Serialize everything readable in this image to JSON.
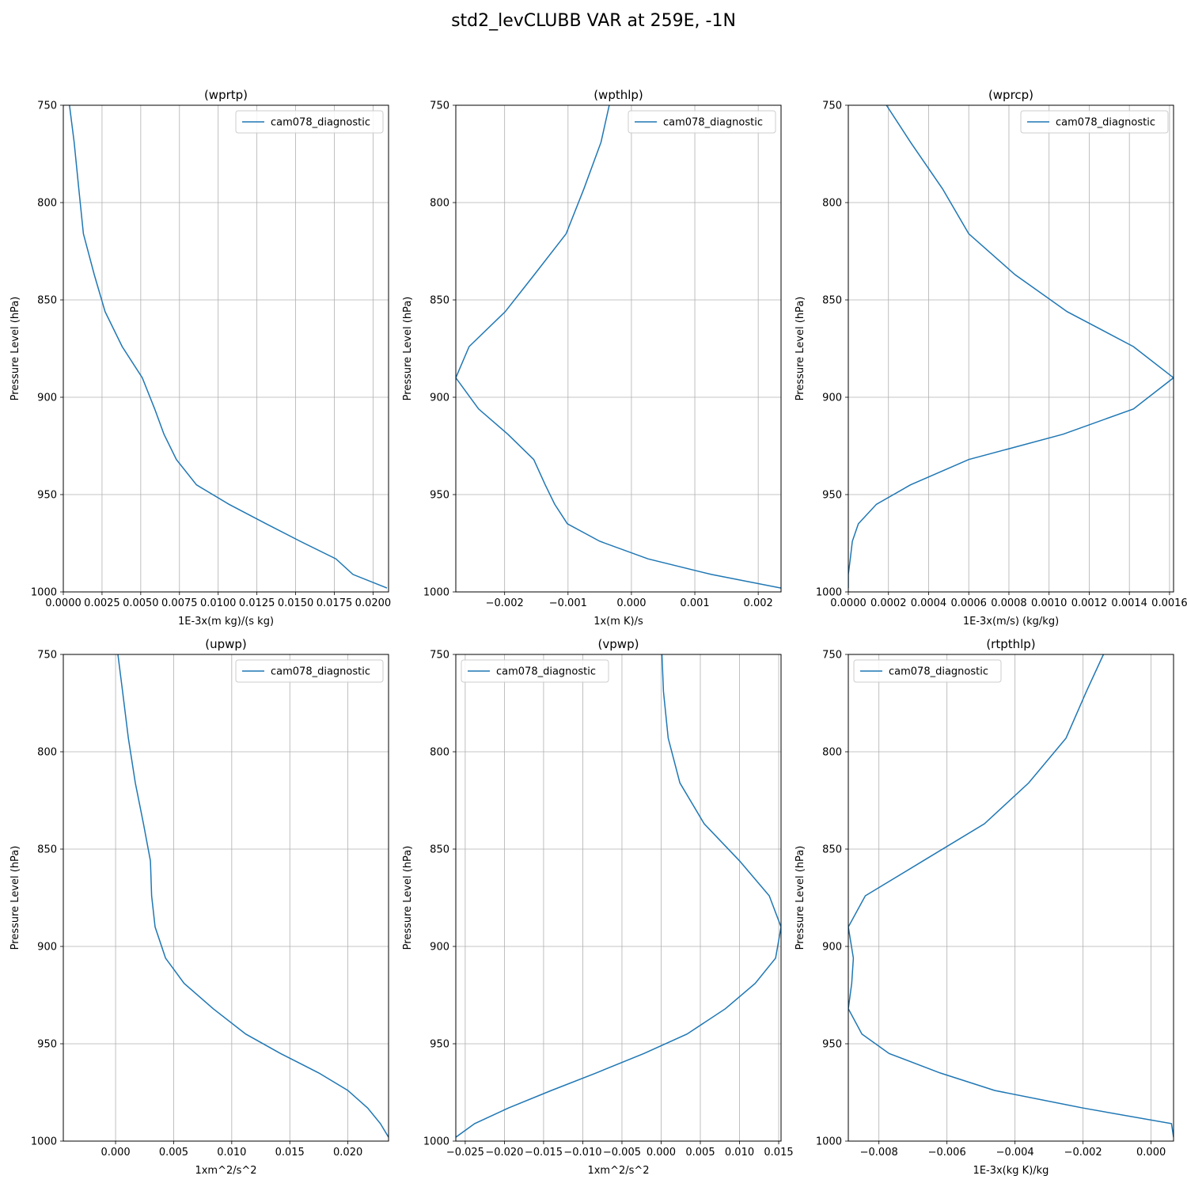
{
  "figure": {
    "title": "std2_levCLUBB VAR at 259E, -1N"
  },
  "colors": {
    "line": "#1f77b4",
    "grid": "#b0b0b0",
    "axes": "#000000",
    "legend_border": "#cccccc"
  },
  "chart_data": [
    {
      "type": "line",
      "title": "(wprtp)",
      "xlabel": "1E-3x(m kg)/(s kg)",
      "ylabel": "Pressure Level (hPa)",
      "xlim": [
        0,
        0.021
      ],
      "ylim": [
        1000,
        750
      ],
      "xticks": [
        0,
        0.0025,
        0.005,
        0.0075,
        0.01,
        0.0125,
        0.015,
        0.0175,
        0.02
      ],
      "xtick_labels": [
        "0.0000",
        "0.0025",
        "0.0050",
        "0.0075",
        "0.0100",
        "0.0125",
        "0.0150",
        "0.0175",
        "0.0200"
      ],
      "yticks": [
        750,
        800,
        850,
        900,
        950,
        1000
      ],
      "ytick_labels": [
        "750",
        "800",
        "850",
        "900",
        "950",
        "1000"
      ],
      "grid": true,
      "legend_loc": "upper right",
      "series": [
        {
          "name": "cam078_diagnostic",
          "x": [
            0.0004,
            0.0007,
            0.001,
            0.0013,
            0.002,
            0.0027,
            0.0038,
            0.0051,
            0.0059,
            0.0065,
            0.0073,
            0.0086,
            0.0107,
            0.0131,
            0.0153,
            0.0176,
            0.0187,
            0.0209
          ],
          "y": [
            750,
            769,
            793,
            816,
            837,
            856,
            874,
            890,
            906,
            919,
            932,
            945,
            955,
            965,
            974,
            983,
            991,
            998
          ]
        }
      ]
    },
    {
      "type": "line",
      "title": "(wpthlp)",
      "xlabel": "1x(m K)/s",
      "ylabel": "Pressure Level (hPa)",
      "xlim": [
        -0.00277,
        0.00236
      ],
      "ylim": [
        1000,
        750
      ],
      "xticks": [
        -0.002,
        -0.001,
        0,
        0.001,
        0.002
      ],
      "xtick_labels": [
        "−0.002",
        "−0.001",
        "0.000",
        "0.001",
        "0.002"
      ],
      "yticks": [
        750,
        800,
        850,
        900,
        950,
        1000
      ],
      "ytick_labels": [
        "750",
        "800",
        "850",
        "900",
        "950",
        "1000"
      ],
      "grid": true,
      "legend_loc": "upper right",
      "series": [
        {
          "name": "cam078_diagnostic",
          "x": [
            -0.00035,
            -0.00048,
            -0.00075,
            -0.00103,
            -0.00153,
            -0.00199,
            -0.00256,
            -0.00277,
            -0.00241,
            -0.00195,
            -0.00154,
            -0.00136,
            -0.00121,
            -0.00101,
            -0.0005,
            0.00026,
            0.00126,
            0.00236
          ],
          "y": [
            750,
            769,
            793,
            816,
            837,
            856,
            874,
            890,
            906,
            919,
            932,
            945,
            955,
            965,
            974,
            983,
            991,
            998
          ]
        }
      ]
    },
    {
      "type": "line",
      "title": "(wprcp)",
      "xlabel": "1E-3x(m/s) (kg/kg)",
      "ylabel": "Pressure Level (hPa)",
      "xlim": [
        0,
        0.00162
      ],
      "ylim": [
        1000,
        750
      ],
      "xticks": [
        0,
        0.0002,
        0.0004,
        0.0006,
        0.0008,
        0.001,
        0.0012,
        0.0014,
        0.0016
      ],
      "xtick_labels": [
        "0.0000",
        "0.0002",
        "0.0004",
        "0.0006",
        "0.0008",
        "0.0010",
        "0.0012",
        "0.0014",
        "0.0016"
      ],
      "yticks": [
        750,
        800,
        850,
        900,
        950,
        1000
      ],
      "ytick_labels": [
        "750",
        "800",
        "850",
        "900",
        "950",
        "1000"
      ],
      "grid": true,
      "legend_loc": "upper right",
      "series": [
        {
          "name": "cam078_diagnostic",
          "x": [
            0.00019,
            0.00031,
            0.00047,
            0.0006,
            0.00083,
            0.00109,
            0.00142,
            0.00162,
            0.00142,
            0.00107,
            0.0006,
            0.00031,
            0.00014,
            5e-05,
            2e-05,
            1e-05,
            0.0,
            0.0
          ],
          "y": [
            750,
            769,
            793,
            816,
            837,
            856,
            874,
            890,
            906,
            919,
            932,
            945,
            955,
            965,
            974,
            983,
            991,
            998
          ]
        }
      ]
    },
    {
      "type": "line",
      "title": "(upwp)",
      "xlabel": "1xm^2/s^2",
      "ylabel": "Pressure Level (hPa)",
      "xlim": [
        -0.0045,
        0.0235
      ],
      "ylim": [
        1000,
        750
      ],
      "xticks": [
        0,
        0.005,
        0.01,
        0.015,
        0.02
      ],
      "xtick_labels": [
        "0.000",
        "0.005",
        "0.010",
        "0.015",
        "0.020"
      ],
      "yticks": [
        750,
        800,
        850,
        900,
        950,
        1000
      ],
      "ytick_labels": [
        "750",
        "800",
        "850",
        "900",
        "950",
        "1000"
      ],
      "grid": true,
      "legend_loc": "upper right",
      "series": [
        {
          "name": "cam078_diagnostic",
          "x": [
            0.0002,
            0.0006,
            0.0011,
            0.0017,
            0.0024,
            0.003,
            0.0031,
            0.0034,
            0.0043,
            0.0059,
            0.0084,
            0.0112,
            0.0142,
            0.0175,
            0.02,
            0.0217,
            0.0228,
            0.0235
          ],
          "y": [
            750,
            769,
            793,
            816,
            837,
            856,
            874,
            890,
            906,
            919,
            932,
            945,
            955,
            965,
            974,
            983,
            991,
            998
          ]
        }
      ]
    },
    {
      "type": "line",
      "title": "(vpwp)",
      "xlabel": "1xm^2/s^2",
      "ylabel": "Pressure Level (hPa)",
      "xlim": [
        -0.0262,
        0.0153
      ],
      "ylim": [
        1000,
        750
      ],
      "xticks": [
        -0.025,
        -0.02,
        -0.015,
        -0.01,
        -0.005,
        0,
        0.005,
        0.01,
        0.015
      ],
      "xtick_labels": [
        "−0.025",
        "−0.020",
        "−0.015",
        "−0.010",
        "−0.005",
        "0.000",
        "0.005",
        "0.010",
        "0.015"
      ],
      "yticks": [
        750,
        800,
        850,
        900,
        950,
        1000
      ],
      "ytick_labels": [
        "750",
        "800",
        "850",
        "900",
        "950",
        "1000"
      ],
      "grid": true,
      "legend_loc": "upper left",
      "series": [
        {
          "name": "cam078_diagnostic",
          "x": [
            0.0001,
            0.0003,
            0.0009,
            0.0024,
            0.0055,
            0.01,
            0.0138,
            0.0153,
            0.0146,
            0.012,
            0.0082,
            0.0033,
            -0.0022,
            -0.0083,
            -0.014,
            -0.0195,
            -0.0238,
            -0.0262
          ],
          "y": [
            750,
            769,
            793,
            816,
            837,
            856,
            874,
            890,
            906,
            919,
            932,
            945,
            955,
            965,
            974,
            983,
            991,
            998
          ]
        }
      ]
    },
    {
      "type": "line",
      "title": "(rtpthlp)",
      "xlabel": "1E-3x(kg K)/kg",
      "ylabel": "Pressure Level (hPa)",
      "xlim": [
        -0.0089,
        0.00066
      ],
      "ylim": [
        1000,
        750
      ],
      "xticks": [
        -0.008,
        -0.006,
        -0.004,
        -0.002,
        0
      ],
      "xtick_labels": [
        "−0.008",
        "−0.006",
        "−0.004",
        "−0.002",
        "0.000"
      ],
      "yticks": [
        750,
        800,
        850,
        900,
        950,
        1000
      ],
      "ytick_labels": [
        "750",
        "800",
        "850",
        "900",
        "950",
        "1000"
      ],
      "grid": true,
      "legend_loc": "upper left",
      "series": [
        {
          "name": "cam078_diagnostic",
          "x": [
            -0.0014,
            -0.0019,
            -0.0025,
            -0.0036,
            -0.0049,
            -0.0067,
            -0.0084,
            -0.0089,
            -0.00875,
            -0.0088,
            -0.0089,
            -0.0085,
            -0.0077,
            -0.0062,
            -0.0046,
            -0.002,
            0.0006,
            0.00066
          ],
          "y": [
            750,
            769,
            793,
            816,
            837,
            856,
            874,
            890,
            906,
            919,
            932,
            945,
            955,
            965,
            974,
            983,
            991,
            998
          ]
        }
      ]
    }
  ]
}
